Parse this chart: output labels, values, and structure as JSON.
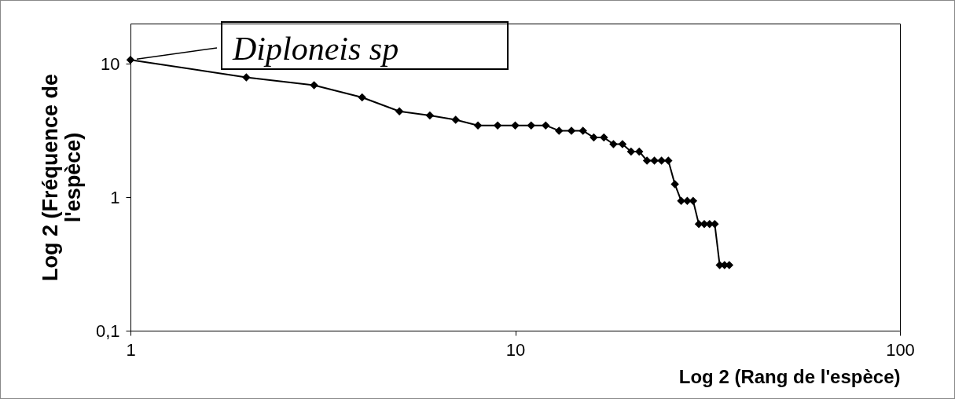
{
  "chart_data": {
    "type": "line",
    "xlabel": "Log 2 (Rang de l'espèce)",
    "ylabel": "Log 2 (Fréquence de l'espèce)",
    "x": [
      1,
      2,
      3,
      4,
      5,
      6,
      7,
      8,
      9,
      10,
      11,
      12,
      13,
      14,
      15,
      16,
      17,
      18,
      19,
      20,
      21,
      22,
      23,
      24,
      25,
      26,
      27,
      28,
      29,
      30,
      31,
      32,
      33,
      34,
      35,
      36
    ],
    "series": [
      {
        "color": "#000000",
        "values": [
          10.7,
          7.9,
          6.9,
          5.6,
          4.4,
          4.1,
          3.8,
          3.45,
          3.45,
          3.45,
          3.45,
          3.45,
          3.15,
          3.15,
          3.15,
          2.8,
          2.8,
          2.5,
          2.5,
          2.2,
          2.2,
          1.88,
          1.88,
          1.88,
          1.88,
          1.25,
          0.94,
          0.94,
          0.94,
          0.63,
          0.63,
          0.63,
          0.63,
          0.31,
          0.31,
          0.31
        ]
      }
    ],
    "log": "xy",
    "xlim": [
      1,
      100
    ],
    "ylim": [
      0.1,
      20
    ],
    "xticks": [
      1,
      10,
      100
    ],
    "yticks": [
      {
        "value": 0.1,
        "label": "0,1"
      },
      1,
      10
    ],
    "marker": "diamond",
    "line_style": "solid",
    "grid": false,
    "annotations": [
      "Diploneis sp"
    ]
  }
}
